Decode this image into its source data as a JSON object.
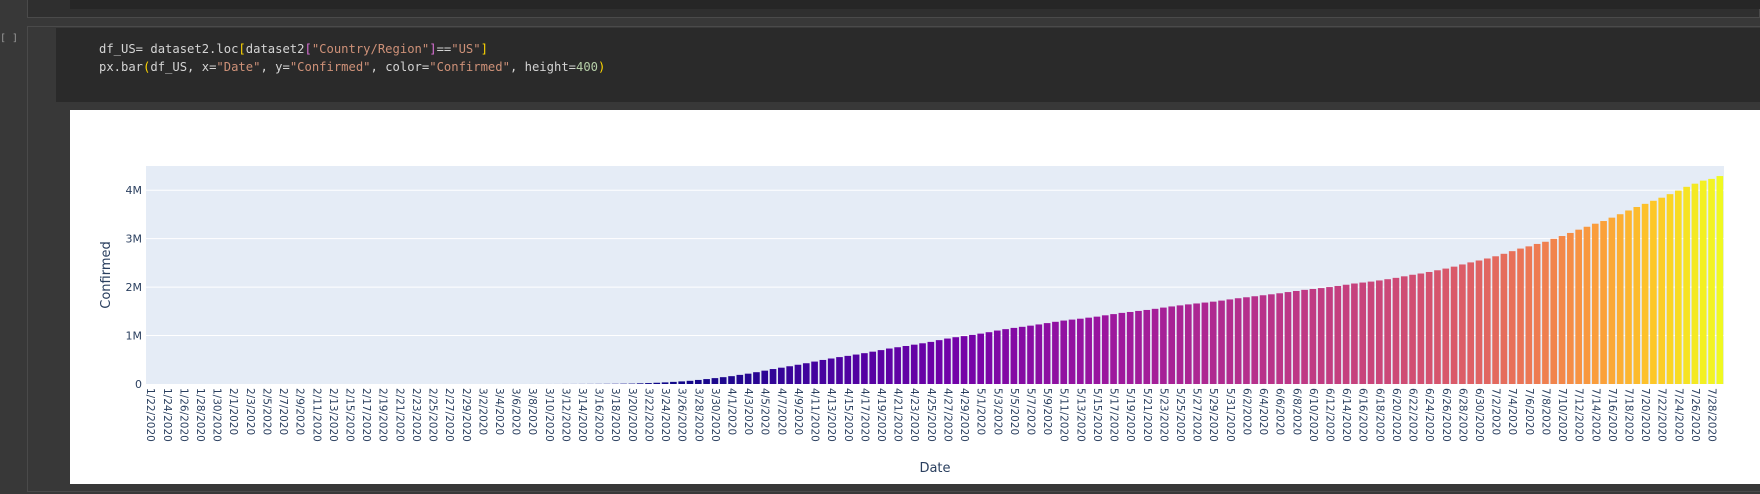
{
  "notebook": {
    "cell_prompt": "[ ]",
    "code": {
      "line1": {
        "a": "df_US= dataset2.loc",
        "b1": "[",
        "c": "dataset2",
        "b2": "[",
        "d": "\"Country/Region\"",
        "b3": "]",
        "e": "==",
        "f": "\"US\"",
        "b4": "]"
      },
      "line2": {
        "a": "px.bar",
        "b1": "(",
        "c": "df_US, x=",
        "d": "\"Date\"",
        "e": ", y=",
        "f": "\"Confirmed\"",
        "g": ", color=",
        "h": "\"Confirmed\"",
        "i": ", height=",
        "j": "400",
        "b2": ")"
      }
    }
  },
  "chart_data": {
    "type": "bar",
    "xlabel": "Date",
    "ylabel": "Confirmed",
    "start_date": "1/22/2020",
    "x_tick_every": 2,
    "ylim": [
      0,
      4500000
    ],
    "yticks": [
      0,
      1000000,
      2000000,
      3000000,
      4000000
    ],
    "ytick_labels": [
      "0",
      "1M",
      "2M",
      "3M",
      "4M"
    ],
    "grid": true,
    "colorscale": "plasma",
    "colorscale_stops": [
      "#0d0887",
      "#46039f",
      "#7201a8",
      "#9c179e",
      "#bd3786",
      "#d8576b",
      "#ed7953",
      "#fb9f3a",
      "#fdca26",
      "#f0f921"
    ],
    "background": "#e5ecf6",
    "values": [
      1,
      1,
      2,
      2,
      5,
      5,
      5,
      5,
      5,
      7,
      8,
      8,
      11,
      11,
      11,
      11,
      11,
      11,
      11,
      11,
      12,
      12,
      13,
      13,
      13,
      13,
      13,
      13,
      13,
      13,
      15,
      15,
      15,
      15,
      15,
      15,
      16,
      16,
      24,
      30,
      53,
      73,
      98,
      118,
      149,
      217,
      262,
      402,
      518,
      583,
      959,
      1281,
      1663,
      2179,
      2726,
      3499,
      4632,
      6421,
      7786,
      13680,
      19101,
      25493,
      33276,
      43847,
      53740,
      65778,
      83836,
      101657,
      121465,
      140909,
      161831,
      188172,
      213242,
      243622,
      275367,
      308650,
      336802,
      366317,
      397121,
      428654,
      462780,
      496535,
      526396,
      555313,
      580619,
      607670,
      636350,
      667592,
      699706,
      732197,
      758809,
      784326,
      811865,
      840351,
      869170,
      905358,
      938154,
      965785,
      988197,
      1012582,
      1039909,
      1069424,
      1103461,
      1132539,
      1158040,
      1180375,
      1204351,
      1229331,
      1257023,
      1283929,
      1309550,
      1329260,
      1347881,
      1369376,
      1390406,
      1417774,
      1442824,
      1467820,
      1486757,
      1508308,
      1528568,
      1551853,
      1577287,
      1600937,
      1622612,
      1643246,
      1662302,
      1680913,
      1699933,
      1721753,
      1746019,
      1770165,
      1790191,
      1811277,
      1831821,
      1851520,
      1872660,
      1897380,
      1920061,
      1943647,
      1961185,
      1979850,
      2000702,
      2023347,
      2048986,
      2074526,
      2094069,
      2114026,
      2137731,
      2163290,
      2191052,
      2222576,
      2255119,
      2280969,
      2312302,
      2347491,
      2382426,
      2422312,
      2467837,
      2510259,
      2549294,
      2590668,
      2636414,
      2687588,
      2742049,
      2795361,
      2841241,
      2891124,
      2936077,
      2996098,
      3054699,
      3117946,
      3185737,
      3245925,
      3308758,
      3364077,
      3434012,
      3504551,
      3581506,
      3653800,
      3718767,
      3781963,
      3845600,
      3918985,
      3991922,
      4070009,
      4134975,
      4198079,
      4233923,
      4292364
    ]
  }
}
